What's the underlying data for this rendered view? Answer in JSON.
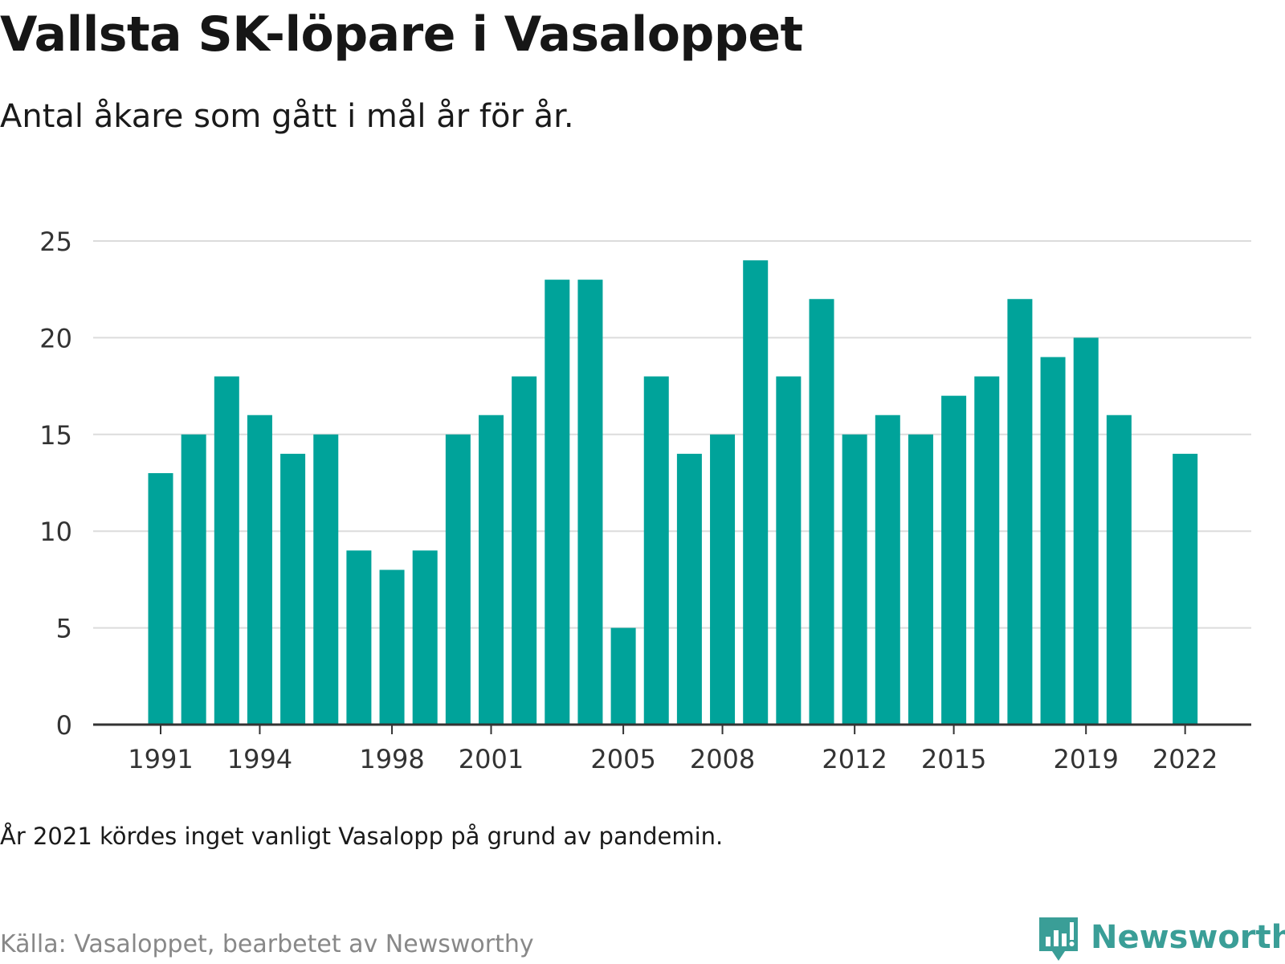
{
  "title": "Vallsta SK-löpare i Vasaloppet",
  "subtitle": "Antal åkare som gått i mål år för år.",
  "note": "År 2021 kördes inget vanligt Vasalopp på grund av pandemin.",
  "source": "Källa: Vasaloppet, bearbetet av Newsworthy",
  "brand": {
    "name": "Newsworthy",
    "icon": "newsworthy-logo-icon"
  },
  "colors": {
    "bar": "#00a39a",
    "grid": "#dcdcdc",
    "axis": "#333333",
    "brand": "#3a9e97"
  },
  "chart_data": {
    "type": "bar",
    "title": "Vallsta SK-löpare i Vasaloppet",
    "xlabel": "",
    "ylabel": "",
    "ylim": [
      0,
      25
    ],
    "y_ticks": [
      0,
      5,
      10,
      15,
      20,
      25
    ],
    "x_tick_labels": [
      "1991",
      "1994",
      "1998",
      "2001",
      "2005",
      "2008",
      "2012",
      "2015",
      "2019",
      "2022"
    ],
    "grid": true,
    "categories": [
      1991,
      1992,
      1993,
      1994,
      1995,
      1996,
      1997,
      1998,
      1999,
      2000,
      2001,
      2002,
      2003,
      2004,
      2005,
      2006,
      2007,
      2008,
      2009,
      2010,
      2011,
      2012,
      2013,
      2014,
      2015,
      2016,
      2017,
      2018,
      2019,
      2020,
      2021,
      2022
    ],
    "values": [
      13,
      15,
      18,
      16,
      14,
      15,
      9,
      8,
      9,
      15,
      16,
      18,
      23,
      23,
      5,
      18,
      14,
      15,
      24,
      18,
      22,
      15,
      16,
      15,
      17,
      18,
      22,
      19,
      20,
      16,
      null,
      14
    ]
  }
}
